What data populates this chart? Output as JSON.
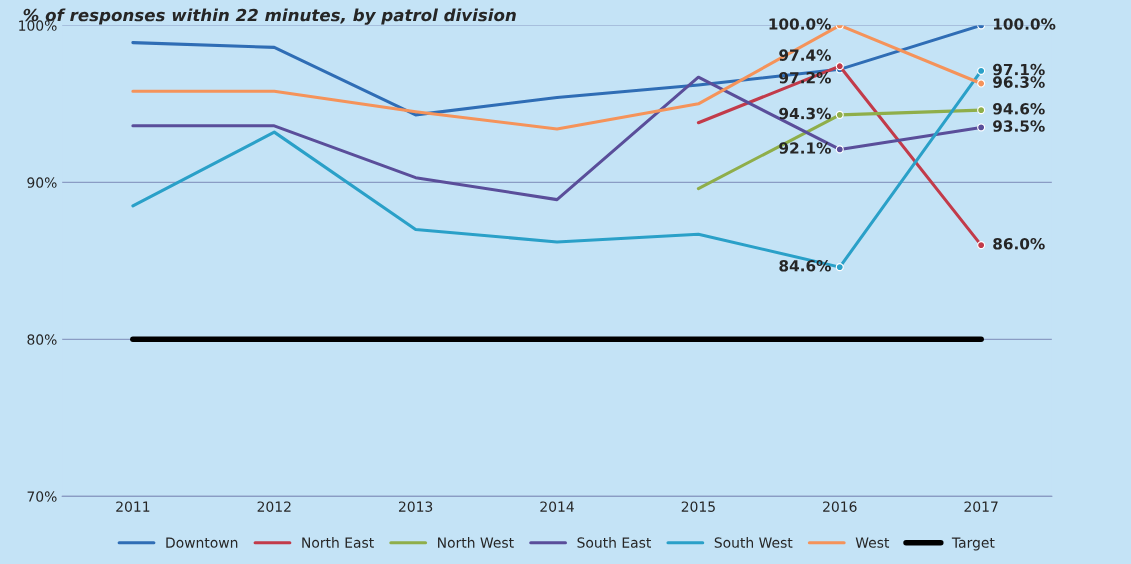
{
  "chart_data": {
    "type": "line",
    "title": "% of responses within 22 minutes, by patrol division",
    "categories": [
      "2011",
      "2012",
      "2013",
      "2014",
      "2015",
      "2016",
      "2017"
    ],
    "series": [
      {
        "name": "Downtown",
        "color": "#2f6db5",
        "values": [
          98.9,
          98.6,
          94.3,
          95.4,
          96.2,
          97.2,
          100.0
        ],
        "value_labels": [
          null,
          null,
          null,
          null,
          null,
          "97.2%",
          "100.0%"
        ]
      },
      {
        "name": "North East",
        "color": "#c23b4a",
        "values": [
          null,
          null,
          null,
          null,
          93.8,
          97.4,
          86.0
        ],
        "value_labels": [
          null,
          null,
          null,
          null,
          null,
          "97.4%",
          "86.0%"
        ]
      },
      {
        "name": "North West",
        "color": "#8fae4a",
        "values": [
          null,
          null,
          null,
          null,
          89.6,
          94.3,
          94.6
        ],
        "value_labels": [
          null,
          null,
          null,
          null,
          null,
          "94.3%",
          "94.6%"
        ]
      },
      {
        "name": "South East",
        "color": "#5a4e9a",
        "values": [
          93.6,
          93.6,
          90.3,
          88.9,
          96.7,
          92.1,
          93.5
        ],
        "value_labels": [
          null,
          null,
          null,
          null,
          null,
          "92.1%",
          "93.5%"
        ]
      },
      {
        "name": "South West",
        "color": "#2aa0c8",
        "values": [
          88.5,
          93.2,
          87.0,
          86.2,
          86.7,
          84.6,
          97.1
        ],
        "value_labels": [
          null,
          null,
          null,
          null,
          null,
          "84.6%",
          "97.1%"
        ]
      },
      {
        "name": "West",
        "color": "#f5935a",
        "values": [
          95.8,
          95.8,
          94.5,
          93.4,
          95.0,
          100.0,
          96.3
        ],
        "value_labels": [
          null,
          null,
          null,
          null,
          null,
          "100.0%",
          "96.3%"
        ]
      },
      {
        "name": "Target",
        "color": "#000000",
        "values": [
          80,
          80,
          80,
          80,
          80,
          80,
          80
        ]
      }
    ],
    "ylim": [
      70,
      100
    ],
    "yticks": [
      {
        "value": 70,
        "label": "70%"
      },
      {
        "value": 80,
        "label": "80%"
      },
      {
        "value": 90,
        "label": "90%"
      },
      {
        "value": 100,
        "label": "100%"
      }
    ],
    "grid": "y",
    "legend": "bottom"
  }
}
